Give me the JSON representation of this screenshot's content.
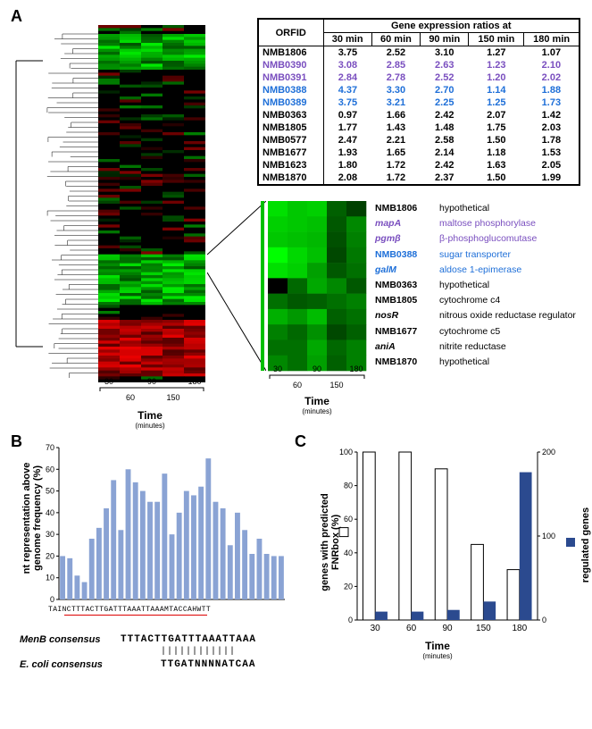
{
  "panelA": {
    "label": "A",
    "table": {
      "header": {
        "orfid": "ORFID",
        "group": "Gene expression ratios at",
        "cols": [
          "30 min",
          "60 min",
          "90 min",
          "150 min",
          "180 min"
        ]
      },
      "rows": [
        {
          "id": "NMB1806",
          "vals": [
            "3.75",
            "2.52",
            "3.10",
            "1.27",
            "1.07"
          ],
          "color": "#000"
        },
        {
          "id": "NMB0390",
          "vals": [
            "3.08",
            "2.85",
            "2.63",
            "1.23",
            "2.10"
          ],
          "color": "#7a4fbf"
        },
        {
          "id": "NMB0391",
          "vals": [
            "2.84",
            "2.78",
            "2.52",
            "1.20",
            "2.02"
          ],
          "color": "#7a4fbf"
        },
        {
          "id": "NMB0388",
          "vals": [
            "4.37",
            "3.30",
            "2.70",
            "1.14",
            "1.88"
          ],
          "color": "#1e6fd8"
        },
        {
          "id": "NMB0389",
          "vals": [
            "3.75",
            "3.21",
            "2.25",
            "1.25",
            "1.73"
          ],
          "color": "#1e6fd8"
        },
        {
          "id": "NMB0363",
          "vals": [
            "0.97",
            "1.66",
            "2.42",
            "2.07",
            "1.42"
          ],
          "color": "#000"
        },
        {
          "id": "NMB1805",
          "vals": [
            "1.77",
            "1.43",
            "1.48",
            "1.75",
            "2.03"
          ],
          "color": "#000"
        },
        {
          "id": "NMB0577",
          "vals": [
            "2.47",
            "2.21",
            "2.58",
            "1.50",
            "1.78"
          ],
          "color": "#000"
        },
        {
          "id": "NMB1677",
          "vals": [
            "1.93",
            "1.65",
            "2.14",
            "1.18",
            "1.53"
          ],
          "color": "#000"
        },
        {
          "id": "NMB1623",
          "vals": [
            "1.80",
            "1.72",
            "2.42",
            "1.63",
            "2.05"
          ],
          "color": "#000"
        },
        {
          "id": "NMB1870",
          "vals": [
            "2.08",
            "1.72",
            "2.37",
            "1.50",
            "1.99"
          ],
          "color": "#000"
        }
      ]
    },
    "geneList": [
      {
        "gene": "NMB1806",
        "desc": "hypothetical",
        "color": "#000",
        "italic": false
      },
      {
        "gene": "mapA",
        "desc": "maltose phosphorylase",
        "color": "#7a4fbf",
        "italic": true
      },
      {
        "gene": "pgmβ",
        "desc": "β-phosphoglucomutase",
        "color": "#7a4fbf",
        "italic": true
      },
      {
        "gene": "NMB0388",
        "desc": "sugar transporter",
        "color": "#1e6fd8",
        "italic": false
      },
      {
        "gene": "galM",
        "desc": "aldose 1-epimerase",
        "color": "#1e6fd8",
        "italic": true
      },
      {
        "gene": "NMB0363",
        "desc": "hypothetical",
        "color": "#000",
        "italic": false
      },
      {
        "gene": "NMB1805",
        "desc": "cytochrome c4",
        "color": "#000",
        "italic": false
      },
      {
        "gene": "nosR",
        "desc": "nitrous oxide reductase regulator",
        "color": "#000",
        "italic": true
      },
      {
        "gene": "NMB1677",
        "desc": "cytochrome c5",
        "color": "#000",
        "italic": false
      },
      {
        "gene": "aniA",
        "desc": "nitrite reductase",
        "color": "#000",
        "italic": true
      },
      {
        "gene": "NMB1870",
        "desc": "hypothetical",
        "color": "#000",
        "italic": false
      }
    ],
    "timeAxis": {
      "upper": [
        "30",
        "90",
        "180"
      ],
      "lower": [
        "60",
        "150"
      ],
      "label": "Time",
      "sub": "(minutes)"
    },
    "heatmap": {
      "main": {
        "rows": 120,
        "cols": 5,
        "greenBandTop": 0.02,
        "greenBandBottom": 0.12,
        "greenBand2Top": 0.64,
        "greenBand2Bottom": 0.78,
        "redBandTop": 0.82,
        "redBandBottom": 0.98
      },
      "detail": {
        "cols": 5,
        "rows": 11,
        "colors": [
          [
            "#00e000",
            "#00c800",
            "#00d000",
            "#006000",
            "#004000"
          ],
          [
            "#00d000",
            "#00c800",
            "#00c000",
            "#005800",
            "#008800"
          ],
          [
            "#00c800",
            "#00c000",
            "#00b800",
            "#005000",
            "#008000"
          ],
          [
            "#00ff00",
            "#00d800",
            "#00c000",
            "#004800",
            "#007800"
          ],
          [
            "#00e000",
            "#00d000",
            "#00a000",
            "#005800",
            "#007000"
          ],
          [
            "#000000",
            "#006800",
            "#00a800",
            "#008800",
            "#005800"
          ],
          [
            "#007000",
            "#005800",
            "#006000",
            "#007000",
            "#008000"
          ],
          [
            "#00b000",
            "#009800",
            "#00bc00",
            "#006000",
            "#007000"
          ],
          [
            "#008000",
            "#006800",
            "#009000",
            "#004800",
            "#006000"
          ],
          [
            "#007000",
            "#007000",
            "#00a800",
            "#006800",
            "#008000"
          ],
          [
            "#008800",
            "#007000",
            "#00a000",
            "#006000",
            "#008000"
          ]
        ]
      }
    }
  },
  "panelB": {
    "label": "B",
    "ylabel": "nt representation above\ngenome frequency (%)",
    "ylim": [
      0,
      70
    ],
    "ytick_step": 10,
    "bar_color": "#8aa3d4",
    "values": [
      20,
      19,
      11,
      8,
      28,
      33,
      42,
      55,
      32,
      60,
      54,
      50,
      45,
      45,
      58,
      30,
      40,
      50,
      48,
      52,
      65,
      45,
      42,
      25,
      40,
      32,
      21,
      28,
      21,
      20,
      20
    ],
    "xseq": "TAINCTTTACTTGATTTAAATTAAAMTACCAHWTT",
    "menb": {
      "label": "MenB consensus",
      "seq": "TTTACTTGATTTAAATTAAA"
    },
    "align_ticks": "||||||||||||",
    "ecoli": {
      "label": "E. coli consensus",
      "seq": "TTGATNNNNATCAA"
    }
  },
  "panelC": {
    "label": "C",
    "ylabel_left": "genes with predicted\nFNRbox (%)",
    "ylabel_right": "regulated genes",
    "left_ylim": [
      0,
      100
    ],
    "left_tick": 20,
    "right_ylim": [
      0,
      200
    ],
    "right_tick": 100,
    "x": [
      "30",
      "60",
      "90",
      "150",
      "180"
    ],
    "xlabel": "Time",
    "xsub": "(minutes)",
    "white_bars": [
      100,
      100,
      90,
      45,
      30
    ],
    "blue_bars": [
      10,
      10,
      12,
      22,
      176
    ],
    "white_fill": "#ffffff",
    "white_stroke": "#000000",
    "blue_fill": "#2b4a8f",
    "legend_left": "□",
    "legend_right": "■"
  }
}
